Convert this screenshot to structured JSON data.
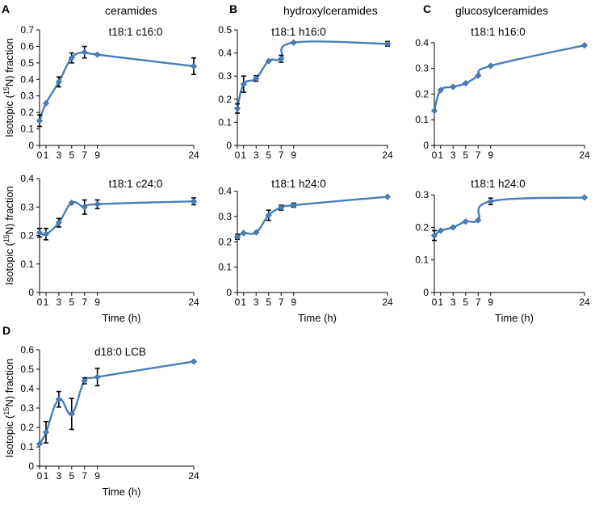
{
  "figure": {
    "group_titles": [
      {
        "letter": "A",
        "title": "ceramides"
      },
      {
        "letter": "B",
        "title": "hydroxylceramides"
      },
      {
        "letter": "C",
        "title": "glucosylceramides"
      },
      {
        "letter": "D",
        "title": ""
      }
    ],
    "x_axis_label": "Time (h)",
    "y_axis_label": "Isotopic (15N) fraction",
    "y_axis_label_parts": {
      "prefix": "Isotopic (",
      "superscript": "15",
      "suffix": "N) fraction"
    },
    "series_color": "#4a7ebb",
    "marker_color": "#4a7ebb",
    "error_bar_color": "#000000"
  },
  "chart_data": [
    {
      "id": "A1",
      "type": "line",
      "title": "t18:1 c16:0",
      "x": [
        0,
        1,
        3,
        5,
        7,
        9,
        24
      ],
      "x_tick_labels": [
        "0",
        "1",
        "3",
        "5",
        "7",
        "9",
        "24"
      ],
      "y": [
        0.15,
        0.255,
        0.385,
        0.53,
        0.565,
        0.55,
        0.48
      ],
      "y_err": [
        0.035,
        0.0,
        0.03,
        0.03,
        0.035,
        0.0,
        0.05
      ],
      "ylim": [
        0,
        0.7
      ],
      "y_ticks": [
        0,
        0.1,
        0.2,
        0.3,
        0.4,
        0.5,
        0.6,
        0.7
      ],
      "y_tick_labels": [
        "0",
        "0.1",
        "0.2",
        "0.3",
        "0.4",
        "0.5",
        "0.6",
        "0.7"
      ],
      "ylabel": "Isotopic (15N) fraction",
      "xlabel": ""
    },
    {
      "id": "B1",
      "type": "line",
      "title": "t18:1 h16:0",
      "x": [
        0,
        1,
        3,
        5,
        7,
        9,
        24
      ],
      "x_tick_labels": [
        "0",
        "1",
        "3",
        "5",
        "7",
        "9",
        "24"
      ],
      "y": [
        0.16,
        0.265,
        0.29,
        0.365,
        0.375,
        0.445,
        0.44
      ],
      "y_err": [
        0.02,
        0.035,
        0.012,
        0.0,
        0.015,
        0.0,
        0.01
      ],
      "ylim": [
        0,
        0.5
      ],
      "y_ticks": [
        0,
        0.1,
        0.2,
        0.3,
        0.4,
        0.5
      ],
      "y_tick_labels": [
        "0",
        "0.1",
        "0.2",
        "0.3",
        "0.4",
        "0.5"
      ],
      "ylabel": "",
      "xlabel": ""
    },
    {
      "id": "C1",
      "type": "line",
      "title": "t18:1 h16:0",
      "x": [
        0,
        1,
        3,
        5,
        7,
        9,
        24
      ],
      "x_tick_labels": [
        "0",
        "1",
        "3",
        "5",
        "7",
        "9",
        "24"
      ],
      "y": [
        0.135,
        0.215,
        0.228,
        0.242,
        0.272,
        0.31,
        0.39
      ],
      "y_err": [
        0.0,
        0.0,
        0.0,
        0.0,
        0.0,
        0.0,
        0.0
      ],
      "ylim": [
        0,
        0.45
      ],
      "y_ticks": [
        0,
        0.1,
        0.2,
        0.3,
        0.4
      ],
      "y_tick_labels": [
        "0",
        "0.1",
        "0.2",
        "0.3",
        "0.4"
      ],
      "ylabel": "",
      "xlabel": ""
    },
    {
      "id": "A2",
      "type": "line",
      "title": "t18:1 c24:0",
      "x": [
        0,
        1,
        3,
        5,
        7,
        9,
        24
      ],
      "x_tick_labels": [
        "0",
        "1",
        "3",
        "5",
        "7",
        "9",
        "24"
      ],
      "y": [
        0.21,
        0.205,
        0.245,
        0.315,
        0.3,
        0.31,
        0.32
      ],
      "y_err": [
        0.015,
        0.02,
        0.015,
        0.0,
        0.025,
        0.015,
        0.012
      ],
      "ylim": [
        0,
        0.4
      ],
      "y_ticks": [
        0,
        0.1,
        0.2,
        0.3,
        0.4
      ],
      "y_tick_labels": [
        "0",
        "0.1",
        "0.2",
        "0.3",
        "0.4"
      ],
      "ylabel": "Isotopic (15N) fraction",
      "xlabel": "Time (h)"
    },
    {
      "id": "B2",
      "type": "line",
      "title": "t18:1 h24:0",
      "x": [
        0,
        1,
        3,
        5,
        7,
        9,
        24
      ],
      "x_tick_labels": [
        "0",
        "1",
        "3",
        "5",
        "7",
        "9",
        "24"
      ],
      "y": [
        0.22,
        0.235,
        0.237,
        0.305,
        0.335,
        0.345,
        0.378
      ],
      "y_err": [
        0.01,
        0.0,
        0.0,
        0.02,
        0.01,
        0.008,
        0.0
      ],
      "ylim": [
        0,
        0.45
      ],
      "y_ticks": [
        0,
        0.1,
        0.2,
        0.3,
        0.4
      ],
      "y_tick_labels": [
        "0",
        "0.1",
        "0.2",
        "0.3",
        "0.4"
      ],
      "ylabel": "",
      "xlabel": "Time (h)"
    },
    {
      "id": "C2",
      "type": "line",
      "title": "t18:1 h24:0",
      "x": [
        0,
        1,
        3,
        5,
        7,
        9,
        24
      ],
      "x_tick_labels": [
        "0",
        "1",
        "3",
        "5",
        "7",
        "9",
        "24"
      ],
      "y": [
        0.175,
        0.19,
        0.2,
        0.218,
        0.222,
        0.28,
        0.292
      ],
      "y_err": [
        0.015,
        0.0,
        0.0,
        0.0,
        0.0,
        0.01,
        0.0
      ],
      "ylim": [
        0,
        0.35
      ],
      "y_ticks": [
        0,
        0.1,
        0.2,
        0.3
      ],
      "y_tick_labels": [
        "0",
        "0.1",
        "0.2",
        "0.3"
      ],
      "ylabel": "",
      "xlabel": "Time (h)"
    },
    {
      "id": "D1",
      "type": "line",
      "title": "d18:0 LCB",
      "x": [
        0,
        1,
        3,
        5,
        7,
        9,
        24
      ],
      "x_tick_labels": [
        "0",
        "1",
        "3",
        "5",
        "7",
        "9",
        "24"
      ],
      "y": [
        0.115,
        0.175,
        0.345,
        0.27,
        0.44,
        0.46,
        0.54
      ],
      "y_err": [
        0.0,
        0.055,
        0.04,
        0.08,
        0.015,
        0.045,
        0.0
      ],
      "ylim": [
        0,
        0.6
      ],
      "y_ticks": [
        0,
        0.1,
        0.2,
        0.3,
        0.4,
        0.5,
        0.6
      ],
      "y_tick_labels": [
        "0",
        "0.1",
        "0.2",
        "0.3",
        "0.4",
        "0.5",
        "0.6"
      ],
      "ylabel": "Isotopic (15N) fraction",
      "xlabel": "Time (h)"
    }
  ]
}
